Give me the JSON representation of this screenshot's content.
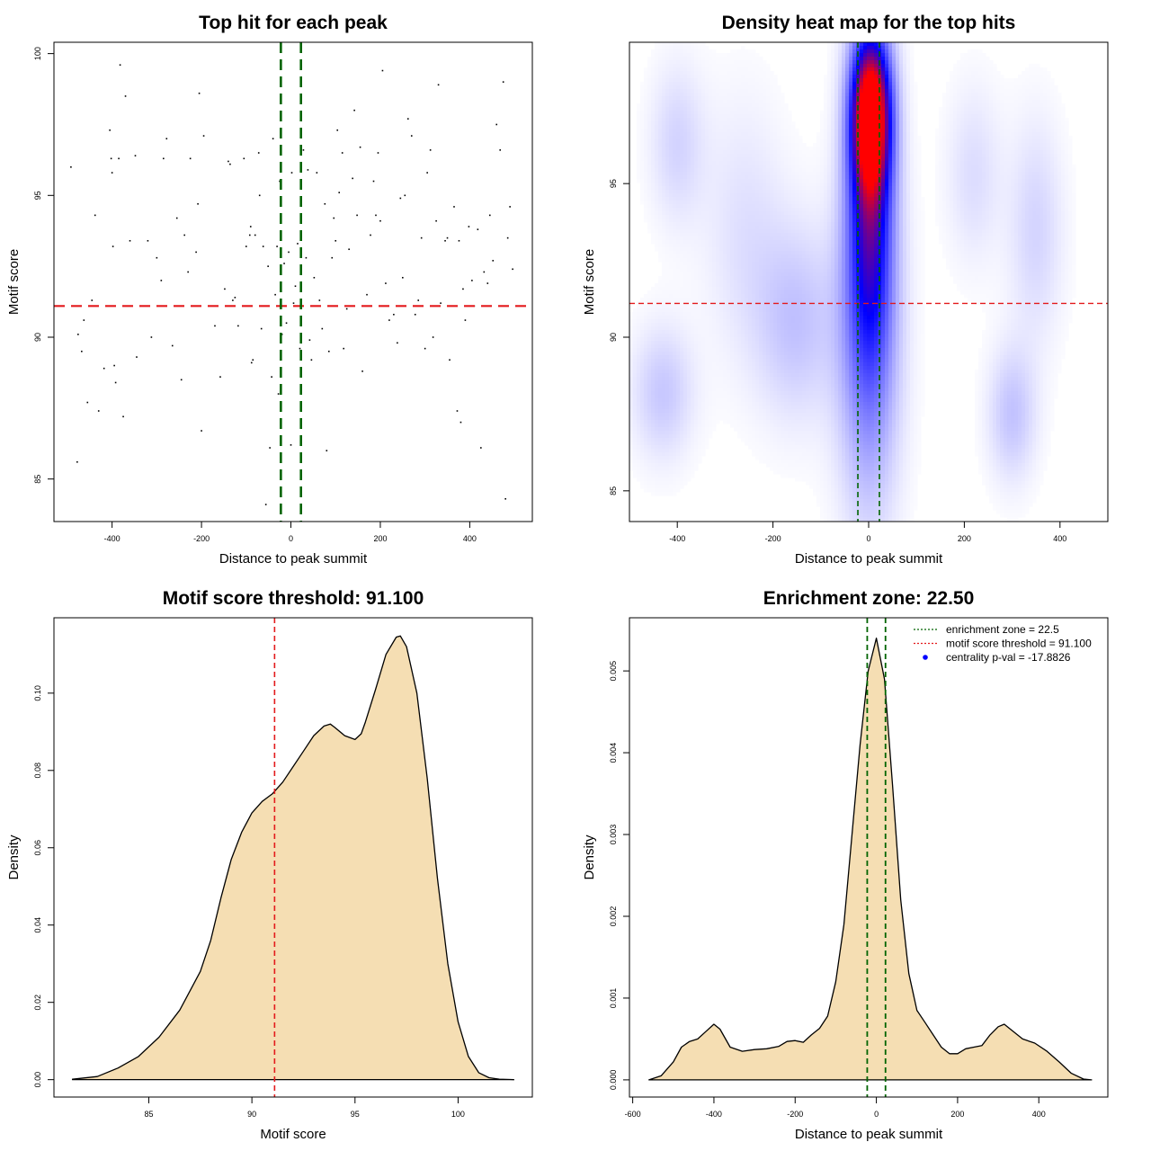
{
  "colors": {
    "green": "#006400",
    "red": "#e31a1c",
    "fill": "#f5deb3",
    "heat_low": "#ffffff",
    "heat_mid": "#0000ff",
    "heat_high": "#ff0000",
    "legend_dot": "#0000ff"
  },
  "chart_data": [
    {
      "id": "scatter",
      "type": "scatter",
      "title": "Top hit for each peak",
      "xlabel": "Distance to peak summit",
      "ylabel": "Motif score",
      "xlim": [
        -530,
        540
      ],
      "ylim": [
        83.5,
        100.4
      ],
      "xticks": [
        -400,
        -200,
        0,
        200,
        400
      ],
      "yticks": [
        85,
        90,
        95,
        100
      ],
      "vlines": [
        -22.5,
        22.5
      ],
      "hline": 91.1,
      "points": [
        [
          -492,
          96.0
        ],
        [
          -478,
          85.6
        ],
        [
          -476,
          90.1
        ],
        [
          -468,
          89.5
        ],
        [
          -463,
          90.6
        ],
        [
          -455,
          87.7
        ],
        [
          -445,
          91.3
        ],
        [
          -438,
          94.3
        ],
        [
          -430,
          87.4
        ],
        [
          -418,
          88.9
        ],
        [
          -405,
          97.3
        ],
        [
          -402,
          96.3
        ],
        [
          -400,
          95.8
        ],
        [
          -398,
          93.2
        ],
        [
          -395,
          89.0
        ],
        [
          -392,
          88.4
        ],
        [
          -385,
          96.3
        ],
        [
          -382,
          99.6
        ],
        [
          -375,
          87.2
        ],
        [
          -370,
          98.5
        ],
        [
          -360,
          93.4
        ],
        [
          -348,
          96.4
        ],
        [
          -345,
          89.3
        ],
        [
          -320,
          93.4
        ],
        [
          -312,
          90.0
        ],
        [
          -300,
          92.8
        ],
        [
          -290,
          92.0
        ],
        [
          -285,
          96.3
        ],
        [
          -278,
          97.0
        ],
        [
          -265,
          89.7
        ],
        [
          -255,
          94.2
        ],
        [
          -245,
          88.5
        ],
        [
          -238,
          93.6
        ],
        [
          -230,
          92.3
        ],
        [
          -225,
          96.3
        ],
        [
          -212,
          93.0
        ],
        [
          -208,
          94.7
        ],
        [
          -205,
          98.6
        ],
        [
          -200,
          86.7
        ],
        [
          -195,
          97.1
        ],
        [
          -170,
          90.4
        ],
        [
          -158,
          88.6
        ],
        [
          -148,
          91.7
        ],
        [
          -140,
          96.2
        ],
        [
          -136,
          96.1
        ],
        [
          -130,
          91.3
        ],
        [
          -125,
          91.4
        ],
        [
          -118,
          90.4
        ],
        [
          -105,
          96.3
        ],
        [
          -100,
          93.2
        ],
        [
          -92,
          93.6
        ],
        [
          -90,
          93.9
        ],
        [
          -88,
          89.1
        ],
        [
          -85,
          89.2
        ],
        [
          -80,
          93.6
        ],
        [
          -72,
          96.5
        ],
        [
          -70,
          95.0
        ],
        [
          -66,
          90.3
        ],
        [
          -62,
          93.2
        ],
        [
          -56,
          84.1
        ],
        [
          -51,
          92.5
        ],
        [
          -47,
          86.1
        ],
        [
          -43,
          88.6
        ],
        [
          -40,
          97.0
        ],
        [
          -35,
          91.5
        ],
        [
          -31,
          93.2
        ],
        [
          -28,
          88.0
        ],
        [
          -25,
          95.5
        ],
        [
          -20,
          90.1
        ],
        [
          -15,
          92.6
        ],
        [
          -10,
          90.5
        ],
        [
          -5,
          93.0
        ],
        [
          0,
          86.2
        ],
        [
          2,
          95.8
        ],
        [
          6,
          91.2
        ],
        [
          10,
          91.8
        ],
        [
          15,
          93.3
        ],
        [
          20,
          89.6
        ],
        [
          28,
          96.6
        ],
        [
          34,
          92.8
        ],
        [
          38,
          95.9
        ],
        [
          42,
          89.9
        ],
        [
          46,
          89.2
        ],
        [
          52,
          92.1
        ],
        [
          58,
          95.8
        ],
        [
          64,
          91.3
        ],
        [
          70,
          90.3
        ],
        [
          76,
          94.7
        ],
        [
          80,
          86.0
        ],
        [
          85,
          89.5
        ],
        [
          92,
          92.8
        ],
        [
          96,
          94.2
        ],
        [
          100,
          93.4
        ],
        [
          104,
          97.3
        ],
        [
          108,
          95.1
        ],
        [
          115,
          96.5
        ],
        [
          118,
          89.6
        ],
        [
          125,
          91.0
        ],
        [
          130,
          93.1
        ],
        [
          138,
          95.6
        ],
        [
          142,
          98.0
        ],
        [
          148,
          94.3
        ],
        [
          155,
          96.7
        ],
        [
          160,
          88.8
        ],
        [
          170,
          91.5
        ],
        [
          178,
          93.6
        ],
        [
          185,
          95.5
        ],
        [
          190,
          94.3
        ],
        [
          195,
          96.5
        ],
        [
          200,
          94.1
        ],
        [
          205,
          99.4
        ],
        [
          212,
          91.9
        ],
        [
          220,
          90.6
        ],
        [
          230,
          90.8
        ],
        [
          238,
          89.8
        ],
        [
          245,
          94.9
        ],
        [
          250,
          92.1
        ],
        [
          255,
          95.0
        ],
        [
          262,
          97.7
        ],
        [
          270,
          97.1
        ],
        [
          278,
          90.8
        ],
        [
          285,
          91.3
        ],
        [
          292,
          93.5
        ],
        [
          300,
          89.6
        ],
        [
          305,
          95.8
        ],
        [
          312,
          96.6
        ],
        [
          318,
          90.0
        ],
        [
          325,
          94.1
        ],
        [
          330,
          98.9
        ],
        [
          335,
          91.2
        ],
        [
          345,
          93.4
        ],
        [
          350,
          93.5
        ],
        [
          355,
          89.2
        ],
        [
          365,
          94.6
        ],
        [
          372,
          87.4
        ],
        [
          376,
          93.4
        ],
        [
          380,
          87.0
        ],
        [
          385,
          91.7
        ],
        [
          390,
          90.6
        ],
        [
          398,
          93.9
        ],
        [
          405,
          92.0
        ],
        [
          410,
          91.1
        ],
        [
          418,
          93.8
        ],
        [
          425,
          86.1
        ],
        [
          432,
          92.3
        ],
        [
          440,
          91.9
        ],
        [
          445,
          94.3
        ],
        [
          452,
          92.7
        ],
        [
          460,
          97.5
        ],
        [
          468,
          96.6
        ],
        [
          475,
          99.0
        ],
        [
          480,
          84.3
        ],
        [
          485,
          93.5
        ],
        [
          490,
          94.6
        ],
        [
          496,
          92.4
        ]
      ]
    },
    {
      "id": "heatmap",
      "type": "heatmap",
      "title": "Density heat map for the top hits",
      "xlabel": "Distance to peak summit",
      "ylabel": "Motif score",
      "xlim": [
        -500,
        500
      ],
      "ylim": [
        84.0,
        99.6
      ],
      "xticks": [
        -400,
        -200,
        0,
        200,
        400
      ],
      "yticks": [
        85,
        90,
        95
      ],
      "vlines": [
        -22.5,
        22.5
      ],
      "hline": 91.1,
      "blobs": [
        {
          "x": 5,
          "y": 97.3,
          "sx": 28,
          "sy": 1.7,
          "w": 1.05
        },
        {
          "x": 3,
          "y": 94.2,
          "sx": 32,
          "sy": 3.4,
          "w": 0.55
        },
        {
          "x": 0,
          "y": 90.0,
          "sx": 45,
          "sy": 4.0,
          "w": 0.28
        },
        {
          "x": -150,
          "y": 90.5,
          "sx": 60,
          "sy": 2.2,
          "w": 0.14
        },
        {
          "x": -430,
          "y": 88.2,
          "sx": 45,
          "sy": 1.5,
          "w": 0.13
        },
        {
          "x": -400,
          "y": 96.3,
          "sx": 40,
          "sy": 1.8,
          "w": 0.1
        },
        {
          "x": 300,
          "y": 87.5,
          "sx": 35,
          "sy": 1.5,
          "w": 0.14
        },
        {
          "x": 350,
          "y": 93.5,
          "sx": 40,
          "sy": 2.5,
          "w": 0.1
        },
        {
          "x": 220,
          "y": 95.3,
          "sx": 40,
          "sy": 2.0,
          "w": 0.08
        },
        {
          "x": -260,
          "y": 93.5,
          "sx": 60,
          "sy": 3.0,
          "w": 0.07
        }
      ]
    },
    {
      "id": "score_density",
      "type": "area",
      "title": "Motif score threshold: 91.100",
      "xlabel": "Motif score",
      "ylabel": "Density",
      "xlim": [
        80.4,
        103.6
      ],
      "ylim": [
        -0.0045,
        0.1195
      ],
      "xticks": [
        85,
        90,
        95,
        100
      ],
      "yticks": [
        0.0,
        0.02,
        0.04,
        0.06,
        0.08,
        0.1
      ],
      "ytick_labels": [
        "0.00",
        "0.02",
        "0.04",
        "0.06",
        "0.08",
        "0.10"
      ],
      "vline": 91.1,
      "x": [
        81.3,
        82.5,
        83.5,
        84.5,
        85.5,
        86.5,
        87.5,
        88.0,
        88.5,
        89.0,
        89.5,
        90.0,
        90.5,
        91.0,
        91.5,
        92.0,
        92.5,
        93.0,
        93.5,
        93.8,
        94.0,
        94.5,
        95.0,
        95.3,
        95.5,
        96.0,
        96.5,
        97.0,
        97.2,
        97.5,
        98.0,
        98.5,
        99.0,
        99.5,
        100.0,
        100.5,
        101.0,
        101.5,
        102.0,
        102.7
      ],
      "y": [
        0.0001,
        0.0008,
        0.003,
        0.006,
        0.011,
        0.018,
        0.028,
        0.036,
        0.047,
        0.057,
        0.064,
        0.069,
        0.072,
        0.074,
        0.077,
        0.081,
        0.085,
        0.089,
        0.0915,
        0.092,
        0.0912,
        0.089,
        0.088,
        0.0895,
        0.0925,
        0.101,
        0.11,
        0.1145,
        0.1148,
        0.112,
        0.1,
        0.078,
        0.052,
        0.03,
        0.015,
        0.006,
        0.0018,
        0.0005,
        0.0001,
        0.0
      ]
    },
    {
      "id": "distance_density",
      "type": "area",
      "title": "Enrichment zone: 22.50",
      "xlabel": "Distance to peak summit",
      "ylabel": "Density",
      "xlim": [
        -608,
        570
      ],
      "ylim": [
        -0.00021,
        0.00565
      ],
      "xticks": [
        -600,
        -400,
        -200,
        0,
        200,
        400
      ],
      "yticks": [
        0.0,
        0.001,
        0.002,
        0.003,
        0.004,
        0.005
      ],
      "ytick_labels": [
        "0.000",
        "0.001",
        "0.002",
        "0.003",
        "0.004",
        "0.005"
      ],
      "vlines": [
        -22.5,
        22.5
      ],
      "x": [
        -560,
        -530,
        -500,
        -480,
        -460,
        -440,
        -420,
        -400,
        -385,
        -360,
        -330,
        -300,
        -270,
        -240,
        -220,
        -200,
        -180,
        -160,
        -140,
        -120,
        -100,
        -80,
        -60,
        -40,
        -20,
        0,
        20,
        40,
        60,
        80,
        100,
        120,
        140,
        160,
        180,
        200,
        220,
        240,
        260,
        280,
        300,
        315,
        330,
        360,
        390,
        420,
        450,
        480,
        510,
        530
      ],
      "y": [
        0.0,
        5e-05,
        0.00022,
        0.0004,
        0.00047,
        0.0005,
        0.00059,
        0.00068,
        0.00062,
        0.0004,
        0.00035,
        0.00037,
        0.00038,
        0.00041,
        0.00047,
        0.00048,
        0.00046,
        0.00055,
        0.00063,
        0.00078,
        0.0012,
        0.0019,
        0.003,
        0.0041,
        0.005,
        0.0054,
        0.0049,
        0.0036,
        0.0022,
        0.0013,
        0.00085,
        0.0007,
        0.00055,
        0.0004,
        0.00032,
        0.00032,
        0.00038,
        0.0004,
        0.00042,
        0.00055,
        0.00065,
        0.00068,
        0.00062,
        0.0005,
        0.00045,
        0.00035,
        0.00022,
        8e-05,
        1e-05,
        0.0
      ],
      "legend": [
        {
          "label": "enrichment zone = 22.5",
          "style": "dotted-line",
          "color": "#006400"
        },
        {
          "label": "motif score threshold = 91.100",
          "style": "dotted-line",
          "color": "#e31a1c"
        },
        {
          "label": "centrality p-val = -17.8826",
          "style": "dot",
          "color": "#0000ff"
        }
      ],
      "legend_position": "top-right"
    }
  ]
}
